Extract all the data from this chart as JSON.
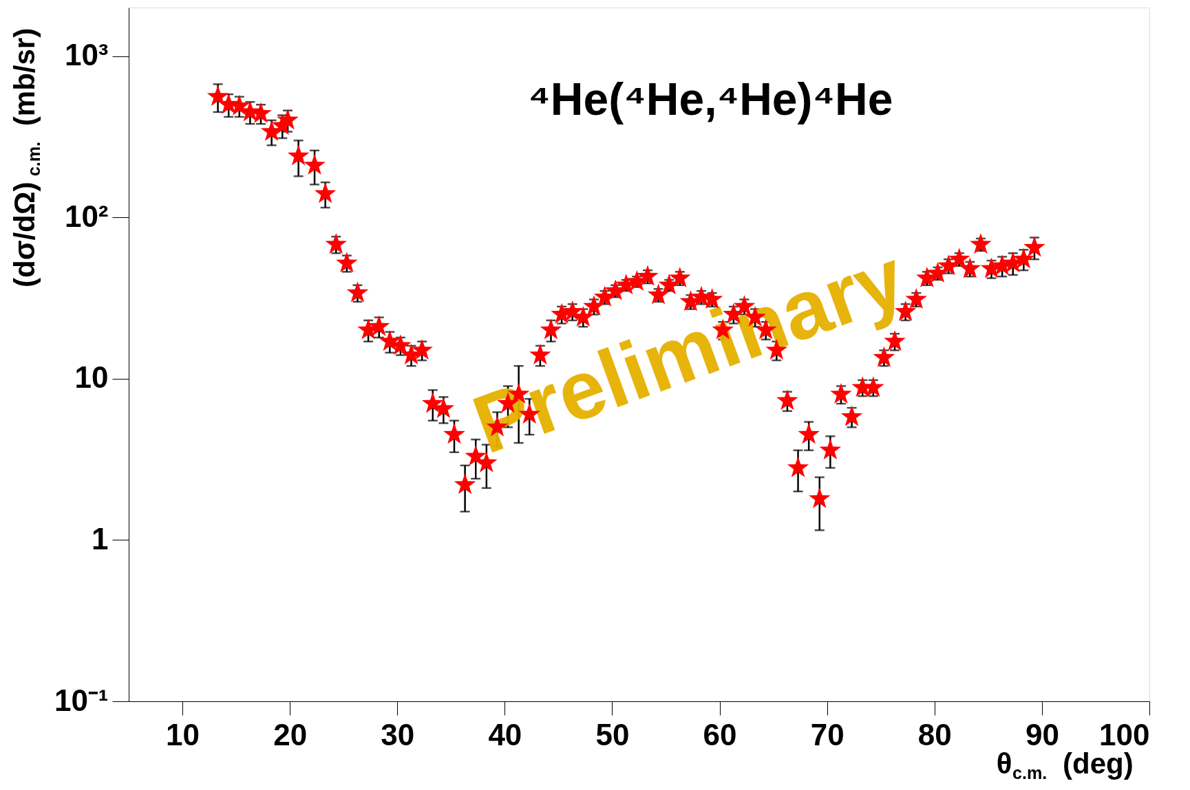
{
  "chart_data": {
    "type": "scatter",
    "title": "⁴He(⁴He,⁴He)⁴He",
    "xlabel": "θ$_{c.m.}$ (deg)",
    "ylabel": "(dσ/dΩ)$_{c.m.}$ (mb/sr)",
    "annotations": [
      "Preliminary"
    ],
    "log": "y",
    "grid": false,
    "marker": "star",
    "xlim": [
      5,
      100
    ],
    "xticks": [
      10,
      20,
      30,
      40,
      50,
      60,
      70,
      80,
      90,
      100
    ],
    "ylim": [
      0.1,
      2000
    ],
    "yticks": [
      {
        "value": 0.1,
        "label": "10⁻¹"
      },
      1,
      10,
      {
        "value": 100,
        "label": "10²"
      },
      {
        "value": 1000,
        "label": "10³"
      }
    ],
    "x": [
      13.3,
      14.3,
      15.3,
      16.3,
      17.3,
      18.3,
      19.3,
      19.8,
      20.8,
      22.3,
      23.3,
      24.3,
      25.3,
      26.3,
      27.3,
      28.3,
      29.3,
      30.3,
      31.3,
      32.3,
      33.3,
      34.3,
      35.3,
      36.3,
      37.3,
      38.3,
      39.3,
      40.3,
      41.3,
      42.3,
      43.3,
      44.3,
      45.3,
      46.3,
      47.3,
      48.3,
      49.3,
      50.3,
      51.3,
      52.3,
      53.3,
      54.3,
      55.3,
      56.3,
      57.3,
      58.3,
      59.3,
      60.3,
      61.3,
      62.3,
      63.3,
      64.3,
      65.3,
      66.3,
      67.3,
      68.3,
      69.3,
      70.3,
      71.3,
      72.3,
      73.3,
      74.3,
      75.3,
      76.3,
      77.3,
      78.3,
      79.3,
      80.3,
      81.3,
      82.3,
      83.3,
      84.3,
      85.3,
      86.3,
      87.3,
      88.3,
      89.3
    ],
    "series": [
      {
        "color": "#ff0000",
        "values": [
          560,
          500,
          490,
          450,
          440,
          340,
          370,
          400,
          240,
          210,
          140,
          68,
          52,
          34,
          20,
          21,
          17,
          16,
          14,
          15,
          7,
          6.5,
          4.5,
          2.2,
          3.3,
          3.0,
          5,
          7,
          8,
          6,
          14,
          20,
          25,
          26,
          24,
          28,
          32,
          35,
          38,
          40,
          43,
          33,
          38,
          42,
          30,
          32,
          31,
          20,
          25,
          28,
          24,
          20,
          15,
          7.3,
          2.8,
          4.5,
          1.8,
          3.6,
          8,
          5.8,
          8.8,
          8.8,
          13.5,
          17,
          26,
          31,
          42,
          45,
          50,
          55,
          48,
          68,
          48,
          50,
          52,
          55,
          65
        ],
        "errors": [
          110,
          80,
          70,
          70,
          60,
          60,
          60,
          60,
          60,
          50,
          25,
          8,
          6,
          4,
          3,
          3,
          2.5,
          2,
          2,
          2,
          1.5,
          1.2,
          1,
          0.7,
          0.9,
          0.9,
          1.2,
          2,
          4,
          1.5,
          2,
          3,
          3,
          3,
          3,
          3,
          3,
          3,
          3,
          3,
          4,
          3,
          3,
          4,
          3,
          3,
          3,
          2.5,
          3,
          3,
          3,
          2.5,
          2,
          1,
          0.8,
          0.9,
          0.65,
          0.8,
          1,
          0.8,
          1,
          1,
          1.5,
          2,
          3,
          3,
          4,
          4,
          5,
          5,
          5,
          6,
          6,
          7,
          8,
          8,
          10
        ]
      }
    ]
  }
}
